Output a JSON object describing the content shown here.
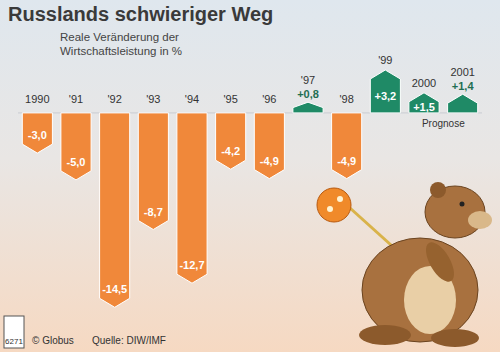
{
  "chart_data": {
    "type": "bar",
    "title": "Russlands schwieriger Weg",
    "subtitle": "Reale Veränderung der Wirtschaftsleistung in %",
    "categories": [
      "1990",
      "'91",
      "'92",
      "'93",
      "'94",
      "'95",
      "'96",
      "'97",
      "'98",
      "'99",
      "2000",
      "2001"
    ],
    "values": [
      -3.0,
      -5.0,
      -14.5,
      -8.7,
      -12.7,
      -4.2,
      -4.9,
      0.8,
      -4.9,
      3.2,
      1.5,
      1.4
    ],
    "value_labels": [
      "-3,0",
      "-5,0",
      "-14,5",
      "-8,7",
      "-12,7",
      "-4,2",
      "-4,9",
      "+0,8",
      "-4,9",
      "+3,2",
      "+1,5",
      "+1,4"
    ],
    "colors": [
      "#f0883a",
      "#f0883a",
      "#f0883a",
      "#f0883a",
      "#f0883a",
      "#f0883a",
      "#f0883a",
      "#1f8a66",
      "#f0883a",
      "#1f8a66",
      "#1f8a66",
      "#1f8a66"
    ],
    "ylim": [
      -15,
      3.5
    ],
    "data_labels": true,
    "tick_labels": "x",
    "annotation": {
      "text": "Prognose",
      "categories": [
        "2000",
        "2001"
      ]
    },
    "source": "Quelle: DIW/IMF",
    "copyright": "© Globus",
    "code": "6271"
  }
}
